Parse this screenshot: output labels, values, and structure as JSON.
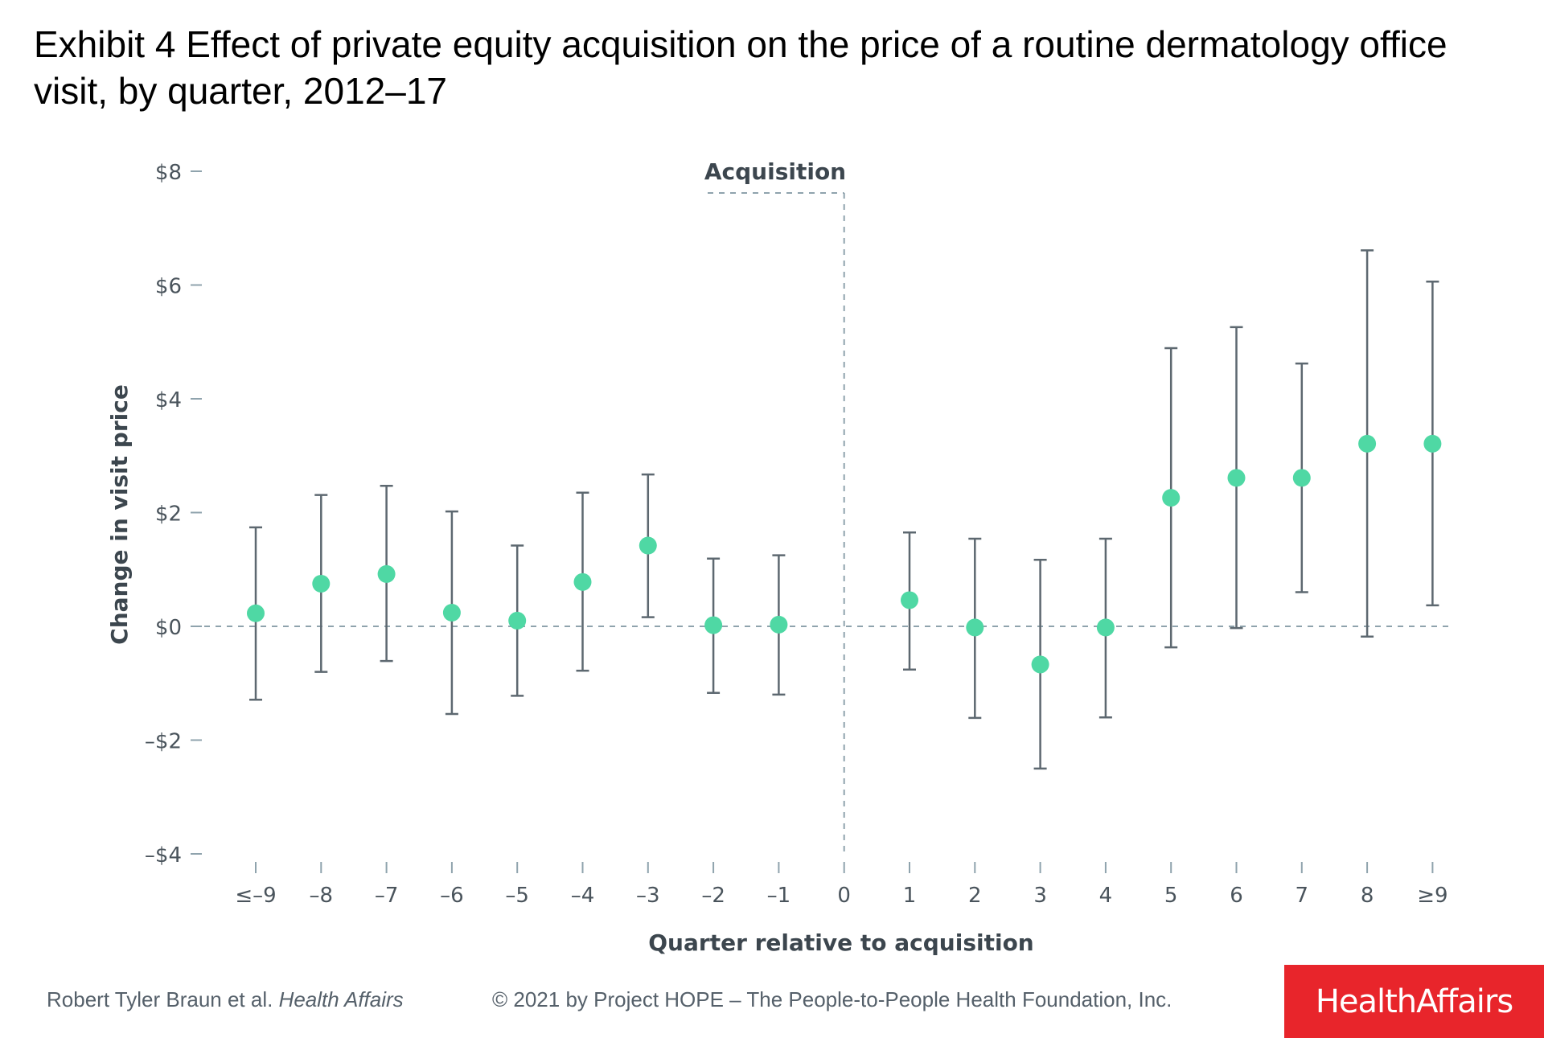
{
  "title": "Exhibit 4 Effect of private equity acquisition on the price of a routine dermatology office visit, by quarter, 2012–17",
  "footer": {
    "authors": "Robert Tyler Braun et al.",
    "journal": "Health Affairs",
    "copyright": "© 2021 by Project HOPE – The People-to-People Health Foundation, Inc."
  },
  "brand": "HealthAffairs",
  "colors": {
    "point": "#4fd8a4",
    "errorbar": "#5d6870",
    "guide": "#8fa3ad",
    "axis_text": "#4a545c",
    "brand_bg": "#e8252b"
  },
  "chart_data": {
    "type": "scatter",
    "title": "",
    "xlabel": "Quarter relative to acquisition",
    "ylabel": "Change in visit price",
    "annotation": "Acquisition",
    "ylim": [
      -4,
      8
    ],
    "yticks": [
      8,
      6,
      4,
      2,
      0,
      -2,
      -4
    ],
    "ytick_labels": [
      "$8",
      "$6",
      "$4",
      "$2",
      "$0",
      "–$2",
      "–$4"
    ],
    "categories": [
      "≤–9",
      "–8",
      "–7",
      "–6",
      "–5",
      "–4",
      "–3",
      "–2",
      "–1",
      "0",
      "1",
      "2",
      "3",
      "4",
      "5",
      "6",
      "7",
      "8",
      "≥9"
    ],
    "points": [
      {
        "x": "≤–9",
        "y": 0.23,
        "lo": -1.29,
        "hi": 1.74
      },
      {
        "x": "–8",
        "y": 0.75,
        "lo": -0.8,
        "hi": 2.31
      },
      {
        "x": "–7",
        "y": 0.92,
        "lo": -0.61,
        "hi": 2.47
      },
      {
        "x": "–6",
        "y": 0.24,
        "lo": -1.54,
        "hi": 2.02
      },
      {
        "x": "–5",
        "y": 0.1,
        "lo": -1.22,
        "hi": 1.42
      },
      {
        "x": "–4",
        "y": 0.78,
        "lo": -0.78,
        "hi": 2.35
      },
      {
        "x": "–3",
        "y": 1.42,
        "lo": 0.16,
        "hi": 2.67
      },
      {
        "x": "–2",
        "y": 0.02,
        "lo": -1.17,
        "hi": 1.19
      },
      {
        "x": "–1",
        "y": 0.03,
        "lo": -1.2,
        "hi": 1.25
      },
      {
        "x": "1",
        "y": 0.46,
        "lo": -0.76,
        "hi": 1.65
      },
      {
        "x": "2",
        "y": -0.02,
        "lo": -1.61,
        "hi": 1.54
      },
      {
        "x": "3",
        "y": -0.67,
        "lo": -2.5,
        "hi": 1.17
      },
      {
        "x": "4",
        "y": -0.02,
        "lo": -1.6,
        "hi": 1.54
      },
      {
        "x": "5",
        "y": 2.26,
        "lo": -0.37,
        "hi": 4.89
      },
      {
        "x": "6",
        "y": 2.61,
        "lo": -0.03,
        "hi": 5.26
      },
      {
        "x": "7",
        "y": 2.61,
        "lo": 0.6,
        "hi": 4.62
      },
      {
        "x": "8",
        "y": 3.21,
        "lo": -0.18,
        "hi": 6.61
      },
      {
        "x": "≥9",
        "y": 3.21,
        "lo": 0.37,
        "hi": 6.06
      }
    ],
    "reference_line_y": 0,
    "grid": false,
    "legend": "none"
  }
}
